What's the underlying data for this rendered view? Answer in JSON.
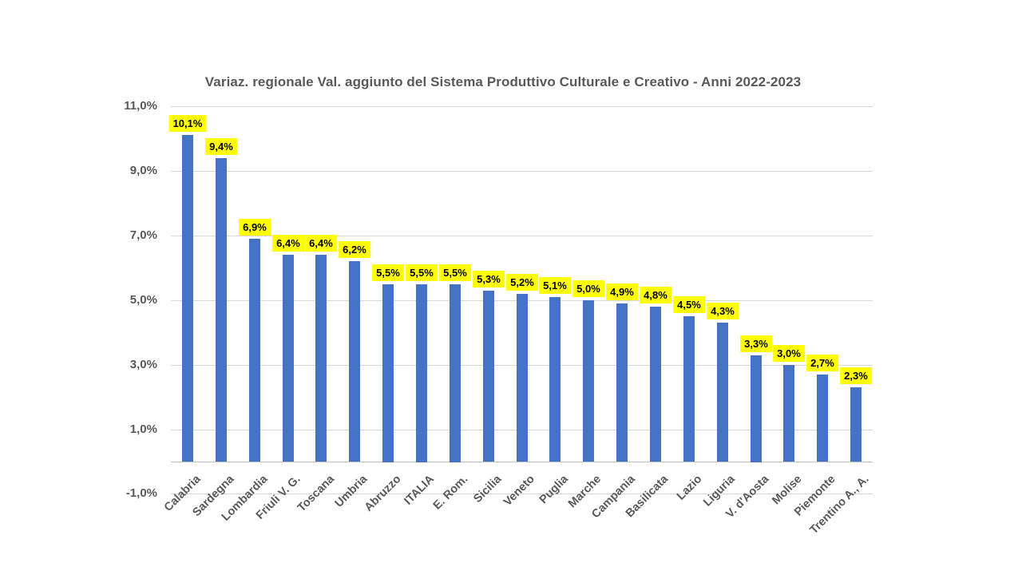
{
  "chart_data": {
    "type": "bar",
    "title": "Variaz. regionale Val. aggiunto del Sistema Produttivo Culturale e Creativo - Anni 2022-2023",
    "categories": [
      "Calabria",
      "Sardegna",
      "Lombardia",
      "Friuli V. G.",
      "Toscana",
      "Umbria",
      "Abruzzo",
      "ITALIA",
      "E. Rom.",
      "Sicilia",
      "Veneto",
      "Puglia",
      "Marche",
      "Campania",
      "Basilicata",
      "Lazio",
      "Liguria",
      "V. d'Aosta",
      "Molise",
      "Piemonte",
      "Trentino A., A."
    ],
    "values": [
      10.1,
      9.4,
      6.9,
      6.4,
      6.4,
      6.2,
      5.5,
      5.5,
      5.5,
      5.3,
      5.2,
      5.1,
      5.0,
      4.9,
      4.8,
      4.5,
      4.3,
      3.3,
      3.0,
      2.7,
      2.3
    ],
    "data_labels": [
      "10,1%",
      "9,4%",
      "6,9%",
      "6,4%",
      "6,4%",
      "6,2%",
      "5,5%",
      "5,5%",
      "5,5%",
      "5,3%",
      "5,2%",
      "5,1%",
      "5,0%",
      "4,9%",
      "4,8%",
      "4,5%",
      "4,3%",
      "3,3%",
      "3,0%",
      "2,7%",
      "2,3%"
    ],
    "y_ticks": {
      "values": [
        11,
        9,
        7,
        5,
        3,
        1,
        -1
      ],
      "labels": [
        "11,0%",
        "9,0%",
        "7,0%",
        "5,0%",
        "3,0%",
        "1,0%",
        "-1,0%"
      ]
    },
    "ylim": [
      -1,
      11
    ],
    "xlabel": "",
    "ylabel": "",
    "legend": "none",
    "grid": true,
    "colors": {
      "bar": "#4472C4",
      "data_label_bg": "#FFFF00",
      "data_label_text": "#000000",
      "axis_text": "#595959",
      "gridline": "#D6D6D6",
      "axis_line": "#BFBFBF",
      "title": "#595959",
      "background": "#FFFFFF"
    }
  }
}
